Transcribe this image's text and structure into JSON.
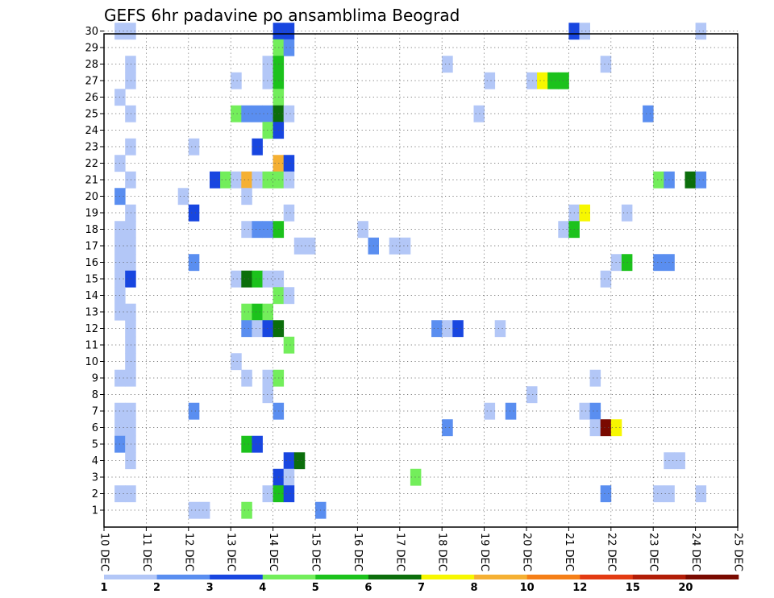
{
  "chart_data": {
    "type": "heatmap",
    "title": "GEFS 6hr padavine po ansamblima Beograd",
    "x_tick_labels": [
      "10 DEC",
      "11 DEC",
      "12 DEC",
      "13 DEC",
      "14 DEC",
      "15 DEC",
      "16 DEC",
      "17 DEC",
      "18 DEC",
      "19 DEC",
      "20 DEC",
      "21 DEC",
      "22 DEC",
      "23 DEC",
      "24 DEC",
      "25 DEC"
    ],
    "y_tick_labels": [
      "1",
      "2",
      "3",
      "4",
      "5",
      "6",
      "7",
      "8",
      "9",
      "10",
      "11",
      "12",
      "13",
      "14",
      "15",
      "16",
      "17",
      "18",
      "19",
      "20",
      "21",
      "22",
      "23",
      "24",
      "25",
      "26",
      "27",
      "28",
      "29",
      "30"
    ],
    "xlim": [
      0,
      60
    ],
    "ylim": [
      0.5,
      30.5
    ],
    "grid": true,
    "cell_units": "6-hour steps from 10 DEC 00z",
    "colorbar": {
      "labels": [
        "1",
        "2",
        "3",
        "4",
        "5",
        "6",
        "7",
        "8",
        "10",
        "12",
        "15",
        "20"
      ],
      "colors": [
        "#b3c7f7",
        "#5a8ef0",
        "#1846e0",
        "#73ee5b",
        "#1cc21c",
        "#0b6e0b",
        "#f7f700",
        "#f5b033",
        "#f57f17",
        "#e33b12",
        "#b21d07",
        "#7a0a00"
      ]
    },
    "cells": [
      {
        "r": 30,
        "c": 1,
        "v": 1
      },
      {
        "r": 30,
        "c": 2,
        "v": 1
      },
      {
        "r": 30,
        "c": 16,
        "v": 3
      },
      {
        "r": 30,
        "c": 17,
        "v": 3
      },
      {
        "r": 30,
        "c": 44,
        "v": 3
      },
      {
        "r": 30,
        "c": 45,
        "v": 1
      },
      {
        "r": 30,
        "c": 56,
        "v": 1
      },
      {
        "r": 29,
        "c": 16,
        "v": 4
      },
      {
        "r": 29,
        "c": 17,
        "v": 2
      },
      {
        "r": 28,
        "c": 2,
        "v": 1
      },
      {
        "r": 28,
        "c": 15,
        "v": 1
      },
      {
        "r": 28,
        "c": 16,
        "v": 5
      },
      {
        "r": 28,
        "c": 32,
        "v": 1
      },
      {
        "r": 28,
        "c": 47,
        "v": 1
      },
      {
        "r": 27,
        "c": 2,
        "v": 1
      },
      {
        "r": 27,
        "c": 12,
        "v": 1
      },
      {
        "r": 27,
        "c": 15,
        "v": 1
      },
      {
        "r": 27,
        "c": 16,
        "v": 5
      },
      {
        "r": 27,
        "c": 36,
        "v": 1
      },
      {
        "r": 27,
        "c": 40,
        "v": 1
      },
      {
        "r": 27,
        "c": 41,
        "v": 7
      },
      {
        "r": 27,
        "c": 42,
        "v": 5
      },
      {
        "r": 27,
        "c": 43,
        "v": 5
      },
      {
        "r": 26,
        "c": 1,
        "v": 1
      },
      {
        "r": 26,
        "c": 16,
        "v": 4
      },
      {
        "r": 25,
        "c": 2,
        "v": 1
      },
      {
        "r": 25,
        "c": 12,
        "v": 4
      },
      {
        "r": 25,
        "c": 13,
        "v": 2
      },
      {
        "r": 25,
        "c": 14,
        "v": 2
      },
      {
        "r": 25,
        "c": 15,
        "v": 2
      },
      {
        "r": 25,
        "c": 16,
        "v": 6
      },
      {
        "r": 25,
        "c": 17,
        "v": 1
      },
      {
        "r": 25,
        "c": 35,
        "v": 1
      },
      {
        "r": 25,
        "c": 51,
        "v": 2
      },
      {
        "r": 24,
        "c": 15,
        "v": 4
      },
      {
        "r": 24,
        "c": 16,
        "v": 3
      },
      {
        "r": 23,
        "c": 2,
        "v": 1
      },
      {
        "r": 23,
        "c": 8,
        "v": 1
      },
      {
        "r": 23,
        "c": 14,
        "v": 3
      },
      {
        "r": 22,
        "c": 1,
        "v": 1
      },
      {
        "r": 22,
        "c": 16,
        "v": 8
      },
      {
        "r": 22,
        "c": 17,
        "v": 3
      },
      {
        "r": 21,
        "c": 2,
        "v": 1
      },
      {
        "r": 21,
        "c": 10,
        "v": 3
      },
      {
        "r": 21,
        "c": 11,
        "v": 4
      },
      {
        "r": 21,
        "c": 12,
        "v": 1
      },
      {
        "r": 21,
        "c": 13,
        "v": 8
      },
      {
        "r": 21,
        "c": 14,
        "v": 1
      },
      {
        "r": 21,
        "c": 15,
        "v": 4
      },
      {
        "r": 21,
        "c": 16,
        "v": 4
      },
      {
        "r": 21,
        "c": 17,
        "v": 1
      },
      {
        "r": 21,
        "c": 52,
        "v": 4
      },
      {
        "r": 21,
        "c": 53,
        "v": 2
      },
      {
        "r": 21,
        "c": 55,
        "v": 6
      },
      {
        "r": 21,
        "c": 56,
        "v": 2
      },
      {
        "r": 20,
        "c": 1,
        "v": 2
      },
      {
        "r": 20,
        "c": 7,
        "v": 1
      },
      {
        "r": 20,
        "c": 13,
        "v": 1
      },
      {
        "r": 19,
        "c": 2,
        "v": 1
      },
      {
        "r": 19,
        "c": 8,
        "v": 3
      },
      {
        "r": 19,
        "c": 17,
        "v": 1
      },
      {
        "r": 19,
        "c": 44,
        "v": 1
      },
      {
        "r": 19,
        "c": 45,
        "v": 7
      },
      {
        "r": 19,
        "c": 49,
        "v": 1
      },
      {
        "r": 18,
        "c": 1,
        "v": 1
      },
      {
        "r": 18,
        "c": 2,
        "v": 1
      },
      {
        "r": 18,
        "c": 13,
        "v": 1
      },
      {
        "r": 18,
        "c": 14,
        "v": 2
      },
      {
        "r": 18,
        "c": 15,
        "v": 2
      },
      {
        "r": 18,
        "c": 16,
        "v": 5
      },
      {
        "r": 18,
        "c": 24,
        "v": 1
      },
      {
        "r": 18,
        "c": 43,
        "v": 1
      },
      {
        "r": 18,
        "c": 44,
        "v": 5
      },
      {
        "r": 17,
        "c": 1,
        "v": 1
      },
      {
        "r": 17,
        "c": 2,
        "v": 1
      },
      {
        "r": 17,
        "c": 18,
        "v": 1
      },
      {
        "r": 17,
        "c": 19,
        "v": 1
      },
      {
        "r": 17,
        "c": 25,
        "v": 2
      },
      {
        "r": 17,
        "c": 27,
        "v": 1
      },
      {
        "r": 17,
        "c": 28,
        "v": 1
      },
      {
        "r": 16,
        "c": 1,
        "v": 1
      },
      {
        "r": 16,
        "c": 2,
        "v": 1
      },
      {
        "r": 16,
        "c": 8,
        "v": 2
      },
      {
        "r": 16,
        "c": 48,
        "v": 1
      },
      {
        "r": 16,
        "c": 49,
        "v": 5
      },
      {
        "r": 16,
        "c": 52,
        "v": 2
      },
      {
        "r": 16,
        "c": 53,
        "v": 2
      },
      {
        "r": 15,
        "c": 1,
        "v": 1
      },
      {
        "r": 15,
        "c": 2,
        "v": 3
      },
      {
        "r": 15,
        "c": 12,
        "v": 1
      },
      {
        "r": 15,
        "c": 13,
        "v": 6
      },
      {
        "r": 15,
        "c": 14,
        "v": 5
      },
      {
        "r": 15,
        "c": 15,
        "v": 1
      },
      {
        "r": 15,
        "c": 16,
        "v": 1
      },
      {
        "r": 15,
        "c": 47,
        "v": 1
      },
      {
        "r": 14,
        "c": 1,
        "v": 1
      },
      {
        "r": 14,
        "c": 16,
        "v": 4
      },
      {
        "r": 14,
        "c": 17,
        "v": 1
      },
      {
        "r": 13,
        "c": 1,
        "v": 1
      },
      {
        "r": 13,
        "c": 2,
        "v": 1
      },
      {
        "r": 13,
        "c": 13,
        "v": 4
      },
      {
        "r": 13,
        "c": 14,
        "v": 5
      },
      {
        "r": 13,
        "c": 15,
        "v": 4
      },
      {
        "r": 12,
        "c": 2,
        "v": 1
      },
      {
        "r": 12,
        "c": 13,
        "v": 2
      },
      {
        "r": 12,
        "c": 14,
        "v": 1
      },
      {
        "r": 12,
        "c": 15,
        "v": 3
      },
      {
        "r": 12,
        "c": 16,
        "v": 6
      },
      {
        "r": 12,
        "c": 31,
        "v": 2
      },
      {
        "r": 12,
        "c": 32,
        "v": 1
      },
      {
        "r": 12,
        "c": 33,
        "v": 3
      },
      {
        "r": 12,
        "c": 37,
        "v": 1
      },
      {
        "r": 11,
        "c": 2,
        "v": 1
      },
      {
        "r": 11,
        "c": 17,
        "v": 4
      },
      {
        "r": 10,
        "c": 2,
        "v": 1
      },
      {
        "r": 10,
        "c": 12,
        "v": 1
      },
      {
        "r": 9,
        "c": 1,
        "v": 1
      },
      {
        "r": 9,
        "c": 2,
        "v": 1
      },
      {
        "r": 9,
        "c": 13,
        "v": 1
      },
      {
        "r": 9,
        "c": 15,
        "v": 1
      },
      {
        "r": 9,
        "c": 16,
        "v": 4
      },
      {
        "r": 9,
        "c": 46,
        "v": 1
      },
      {
        "r": 8,
        "c": 15,
        "v": 1
      },
      {
        "r": 8,
        "c": 40,
        "v": 1
      },
      {
        "r": 7,
        "c": 1,
        "v": 1
      },
      {
        "r": 7,
        "c": 2,
        "v": 1
      },
      {
        "r": 7,
        "c": 8,
        "v": 2
      },
      {
        "r": 7,
        "c": 16,
        "v": 2
      },
      {
        "r": 7,
        "c": 36,
        "v": 1
      },
      {
        "r": 7,
        "c": 38,
        "v": 2
      },
      {
        "r": 7,
        "c": 45,
        "v": 1
      },
      {
        "r": 7,
        "c": 46,
        "v": 2
      },
      {
        "r": 6,
        "c": 1,
        "v": 1
      },
      {
        "r": 6,
        "c": 2,
        "v": 1
      },
      {
        "r": 6,
        "c": 32,
        "v": 2
      },
      {
        "r": 6,
        "c": 46,
        "v": 1
      },
      {
        "r": 6,
        "c": 47,
        "v": 20
      },
      {
        "r": 6,
        "c": 48,
        "v": 7
      },
      {
        "r": 5,
        "c": 1,
        "v": 2
      },
      {
        "r": 5,
        "c": 2,
        "v": 1
      },
      {
        "r": 5,
        "c": 13,
        "v": 5
      },
      {
        "r": 5,
        "c": 14,
        "v": 3
      },
      {
        "r": 4,
        "c": 2,
        "v": 1
      },
      {
        "r": 4,
        "c": 17,
        "v": 3
      },
      {
        "r": 4,
        "c": 18,
        "v": 6
      },
      {
        "r": 4,
        "c": 53,
        "v": 1
      },
      {
        "r": 4,
        "c": 54,
        "v": 1
      },
      {
        "r": 3,
        "c": 16,
        "v": 3
      },
      {
        "r": 3,
        "c": 17,
        "v": 1
      },
      {
        "r": 3,
        "c": 29,
        "v": 4
      },
      {
        "r": 2,
        "c": 1,
        "v": 1
      },
      {
        "r": 2,
        "c": 2,
        "v": 1
      },
      {
        "r": 2,
        "c": 15,
        "v": 1
      },
      {
        "r": 2,
        "c": 16,
        "v": 5
      },
      {
        "r": 2,
        "c": 17,
        "v": 3
      },
      {
        "r": 2,
        "c": 47,
        "v": 2
      },
      {
        "r": 2,
        "c": 52,
        "v": 1
      },
      {
        "r": 2,
        "c": 53,
        "v": 1
      },
      {
        "r": 2,
        "c": 56,
        "v": 1
      },
      {
        "r": 1,
        "c": 8,
        "v": 1
      },
      {
        "r": 1,
        "c": 9,
        "v": 1
      },
      {
        "r": 1,
        "c": 13,
        "v": 4
      },
      {
        "r": 1,
        "c": 20,
        "v": 2
      }
    ]
  }
}
